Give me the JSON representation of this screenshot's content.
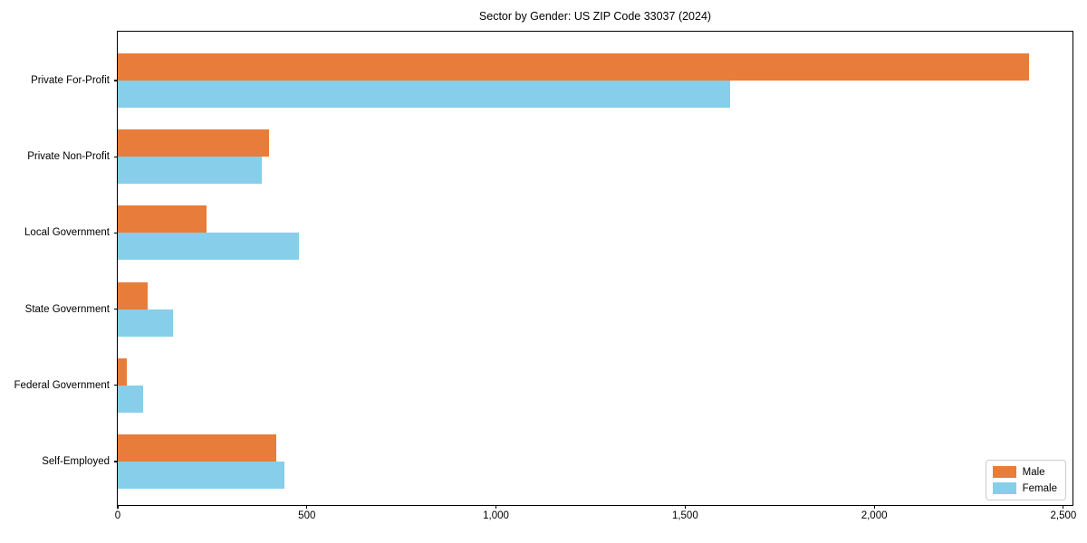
{
  "figure": {
    "title": "Sector by Gender: US ZIP Code 33037 (2024)"
  },
  "chart_data": {
    "type": "bar",
    "orientation": "horizontal",
    "title": "Sector by Gender: US ZIP Code 33037 (2024)",
    "categories": [
      "Private For-Profit",
      "Private Non-Profit",
      "Local Government",
      "State Government",
      "Federal Government",
      "Self-Employed"
    ],
    "series": [
      {
        "name": "Male",
        "color": "#e87d3b",
        "values": [
          2410,
          400,
          235,
          80,
          25,
          420
        ]
      },
      {
        "name": "Female",
        "color": "#87ceeb",
        "values": [
          1620,
          380,
          480,
          145,
          68,
          440
        ]
      }
    ],
    "xlabel": "",
    "ylabel": "",
    "x_ticks": {
      "values": [
        0,
        500,
        1000,
        1500,
        2000,
        2500
      ],
      "labels": [
        "0",
        "500",
        "1,000",
        "1,500",
        "2,000",
        "2,500"
      ]
    },
    "xlim": [
      0,
      2529
    ],
    "grid": false,
    "legend": {
      "position": "lower right"
    }
  }
}
